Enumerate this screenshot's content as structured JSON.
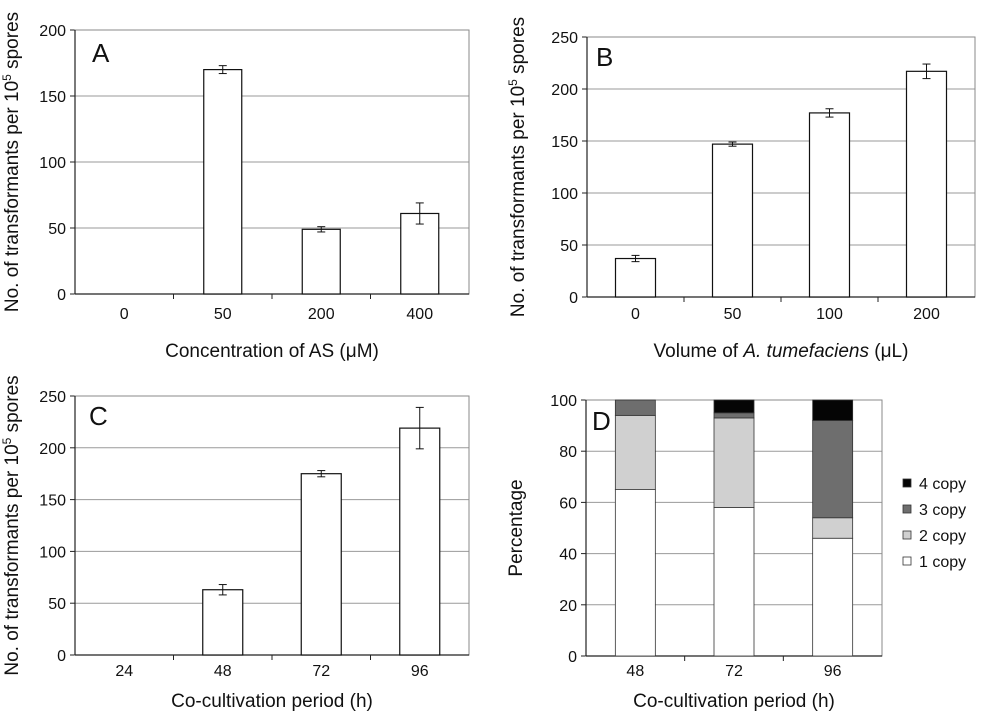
{
  "chart_data": [
    {
      "panel": "A",
      "type": "bar",
      "xlabel": "Concentration of AS (μM)",
      "ylabel": "No. of transformants per 10",
      "ylabel_sup": "5",
      "ylabel_tail": " spores",
      "categories": [
        "0",
        "50",
        "200",
        "400"
      ],
      "values": [
        0,
        170,
        49,
        61
      ],
      "errors": [
        0,
        3,
        2,
        8
      ],
      "ylim": [
        0,
        200
      ],
      "yticks": [
        0,
        50,
        100,
        150,
        200
      ],
      "grid": true
    },
    {
      "panel": "B",
      "type": "bar",
      "xlabel_pre": "Volume of ",
      "xlabel_italic": "A. tumefaciens",
      "xlabel_post": " (μL)",
      "ylabel": "No. of transformants per 10",
      "ylabel_sup": "5",
      "ylabel_tail": " spores",
      "categories": [
        "0",
        "50",
        "100",
        "200"
      ],
      "values": [
        37,
        147,
        177,
        217
      ],
      "errors": [
        3,
        2,
        4,
        7
      ],
      "ylim": [
        0,
        250
      ],
      "yticks": [
        0,
        50,
        100,
        150,
        200,
        250
      ],
      "grid": true
    },
    {
      "panel": "C",
      "type": "bar",
      "xlabel": "Co-cultivation period  (h)",
      "ylabel": "No. of transformants per 10",
      "ylabel_sup": "5",
      "ylabel_tail": " spores",
      "categories": [
        "24",
        "48",
        "72",
        "96"
      ],
      "values": [
        0,
        63,
        175,
        219
      ],
      "errors": [
        0,
        5,
        3,
        20
      ],
      "ylim": [
        0,
        250
      ],
      "yticks": [
        0,
        50,
        100,
        150,
        200,
        250
      ],
      "grid": true
    },
    {
      "panel": "D",
      "type": "stacked-bar",
      "xlabel": "Co-cultivation period  (h)",
      "ylabel": "Percentage",
      "categories": [
        "48",
        "72",
        "96"
      ],
      "series": [
        {
          "name": "1 copy",
          "color": "#ffffff",
          "values": [
            65,
            58,
            46
          ]
        },
        {
          "name": "2 copy",
          "color": "#d0d0d0",
          "values": [
            29,
            35,
            8
          ]
        },
        {
          "name": "3 copy",
          "color": "#6e6e6e",
          "values": [
            6,
            2,
            38
          ]
        },
        {
          "name": "4 copy",
          "color": "#050505",
          "values": [
            0,
            5,
            8
          ]
        }
      ],
      "ylim": [
        0,
        100
      ],
      "yticks": [
        0,
        20,
        40,
        60,
        80,
        100
      ],
      "grid": true,
      "legend_position": "right"
    }
  ]
}
